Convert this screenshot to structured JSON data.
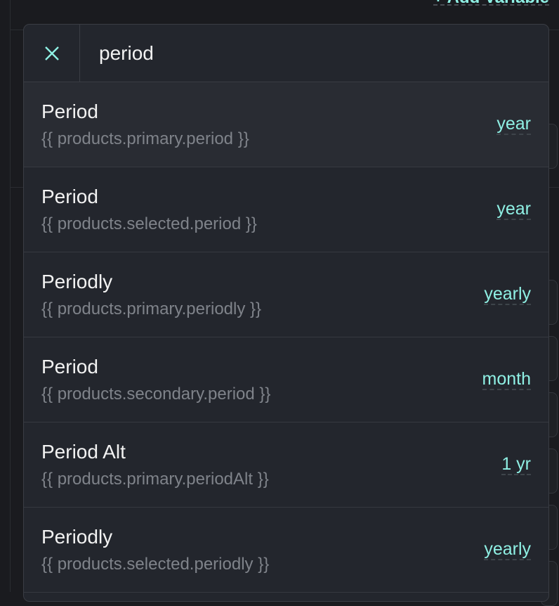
{
  "background": {
    "add_variable_label": "+ Add Variable"
  },
  "search": {
    "value": "period",
    "close_icon": "close-x-icon"
  },
  "results": [
    {
      "label": "Period",
      "path": "{{ products.primary.period }}",
      "value": "year"
    },
    {
      "label": "Period",
      "path": "{{ products.selected.period }}",
      "value": "year"
    },
    {
      "label": "Periodly",
      "path": "{{ products.primary.periodly }}",
      "value": "yearly"
    },
    {
      "label": "Period",
      "path": "{{ products.secondary.period }}",
      "value": "month"
    },
    {
      "label": "Period Alt",
      "path": "{{ products.primary.periodAlt }}",
      "value": "1 yr"
    },
    {
      "label": "Periodly",
      "path": "{{ products.selected.periodly }}",
      "value": "yearly"
    }
  ],
  "colors": {
    "accent": "#8ff0e4",
    "panel": "#23262d",
    "background": "#1a1b1f"
  }
}
